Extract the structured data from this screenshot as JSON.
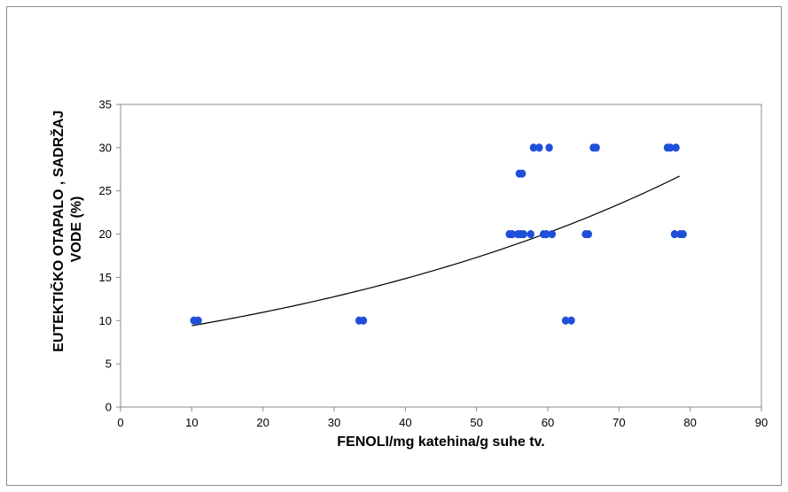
{
  "chart_data": {
    "type": "scatter",
    "xlabel": "FENOLI/mg katehina/g suhe tv.",
    "ylabel_lines": [
      "EUTEKTIČKO OTAPALO , SADRŽAJ",
      "VODE (%)"
    ],
    "xlim": [
      0,
      90
    ],
    "ylim": [
      0,
      35
    ],
    "x_ticks": [
      0,
      10,
      20,
      30,
      40,
      50,
      60,
      70,
      80,
      90
    ],
    "y_ticks": [
      0,
      5,
      10,
      15,
      20,
      25,
      30,
      35
    ],
    "grid": false,
    "marker_color": "#1f4fd8",
    "trendline_color": "#000000",
    "series": [
      {
        "points": [
          [
            10.3,
            10
          ],
          [
            10.9,
            10
          ],
          [
            33.5,
            10
          ],
          [
            34.1,
            10
          ],
          [
            62.5,
            10
          ],
          [
            63.3,
            10
          ],
          [
            54.6,
            20
          ],
          [
            55.0,
            20
          ],
          [
            55.8,
            20
          ],
          [
            56.2,
            20
          ],
          [
            56.6,
            20
          ],
          [
            57.6,
            20
          ],
          [
            59.4,
            20
          ],
          [
            59.8,
            20
          ],
          [
            60.6,
            20
          ],
          [
            65.3,
            20
          ],
          [
            65.7,
            20
          ],
          [
            77.8,
            20
          ],
          [
            78.6,
            20
          ],
          [
            79.0,
            20
          ],
          [
            56.0,
            27
          ],
          [
            56.4,
            27
          ],
          [
            58.0,
            30
          ],
          [
            58.8,
            30
          ],
          [
            60.2,
            30
          ],
          [
            66.4,
            30
          ],
          [
            66.8,
            30
          ],
          [
            76.8,
            30
          ],
          [
            77.2,
            30
          ],
          [
            78.0,
            30
          ]
        ]
      }
    ],
    "trendline": {
      "type": "exponential",
      "a": 8.08,
      "b": 0.01523,
      "x_range": [
        10,
        78.5
      ]
    }
  }
}
